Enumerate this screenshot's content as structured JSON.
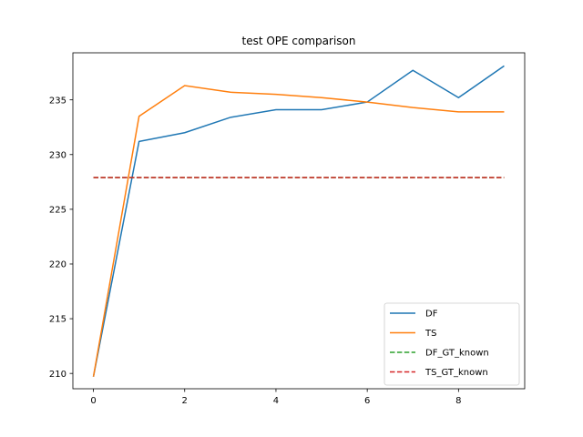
{
  "chart_data": {
    "type": "line",
    "title": "test OPE comparison",
    "xlabel": "",
    "ylabel": "",
    "x": [
      0,
      1,
      2,
      3,
      4,
      5,
      6,
      7,
      8,
      9
    ],
    "xlim": [
      -0.45,
      9.45
    ],
    "ylim": [
      208.6,
      239.3
    ],
    "xticks": [
      0,
      2,
      4,
      6,
      8
    ],
    "yticks": [
      210,
      215,
      220,
      225,
      230,
      235
    ],
    "grid": false,
    "legend_position": "lower-right",
    "series": [
      {
        "name": "DF",
        "color": "#1f77b4",
        "style": "solid",
        "values": [
          209.7,
          231.2,
          232.0,
          233.4,
          234.1,
          234.1,
          234.8,
          237.7,
          235.2,
          238.1
        ]
      },
      {
        "name": "TS",
        "color": "#ff7f0e",
        "style": "solid",
        "values": [
          209.7,
          233.5,
          236.3,
          235.7,
          235.5,
          235.2,
          234.8,
          234.3,
          233.9,
          233.9
        ]
      },
      {
        "name": "DF_GT_known",
        "color": "#2ca02c",
        "style": "dashed",
        "values": [
          227.9,
          227.9,
          227.9,
          227.9,
          227.9,
          227.9,
          227.9,
          227.9,
          227.9,
          227.9
        ]
      },
      {
        "name": "TS_GT_known",
        "color": "#d62728",
        "style": "dashed",
        "values": [
          227.9,
          227.9,
          227.9,
          227.9,
          227.9,
          227.9,
          227.9,
          227.9,
          227.9,
          227.9
        ]
      }
    ]
  }
}
